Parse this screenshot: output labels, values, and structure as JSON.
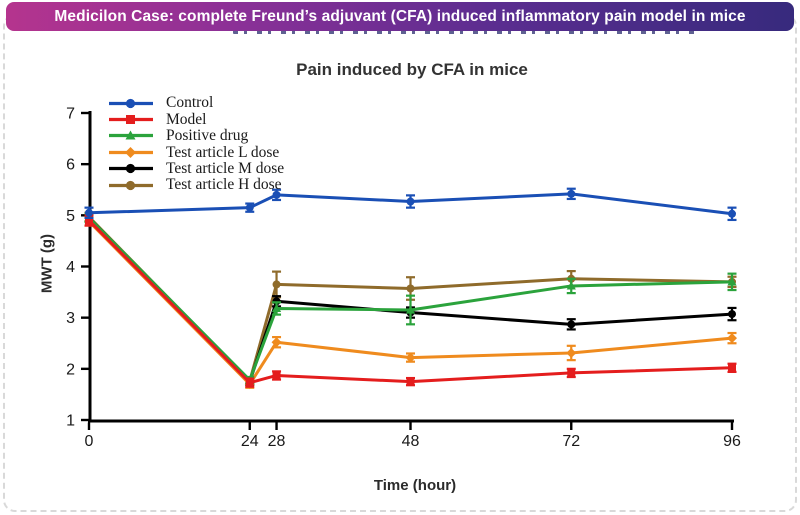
{
  "banner": {
    "text": "Medicilon Case: complete Freund’s adjuvant (CFA) induced inflammatory pain model in mice",
    "bg_left": "#b5348e",
    "bg_right": "#372a7d",
    "text_color": "#ffffff"
  },
  "chart_data": {
    "type": "line",
    "title": "Pain induced by CFA in mice",
    "xlabel": "Time (hour)",
    "ylabel": "MWT (g)",
    "x": [
      0,
      24,
      28,
      48,
      72,
      96
    ],
    "x_tick_labels": [
      "0",
      "24",
      "28",
      "48",
      "72",
      "96"
    ],
    "xlim": [
      0,
      96
    ],
    "ylim": [
      1,
      7
    ],
    "y_ticks": [
      1,
      2,
      3,
      4,
      5,
      6,
      7
    ],
    "grid": false,
    "error_bars": true,
    "legend_position": "top-left",
    "axis_color": "#000000",
    "series": [
      {
        "name": "Control",
        "color": "#1a4fb5",
        "marker": "circle",
        "values": [
          5.05,
          5.15,
          5.4,
          5.27,
          5.42,
          5.03
        ],
        "errors": [
          0.1,
          0.08,
          0.1,
          0.12,
          0.1,
          0.12
        ]
      },
      {
        "name": "Model",
        "color": "#e41d1d",
        "marker": "square",
        "values": [
          4.9,
          1.73,
          1.87,
          1.75,
          1.92,
          2.02
        ],
        "errors": [
          0.1,
          0.08,
          0.08,
          0.07,
          0.08,
          0.08
        ]
      },
      {
        "name": "Positive drug",
        "color": "#2ba33c",
        "marker": "triangle",
        "values": [
          4.95,
          1.78,
          3.18,
          3.15,
          3.62,
          3.7
        ],
        "errors": [
          0.08,
          0.06,
          0.12,
          0.28,
          0.14,
          0.16
        ]
      },
      {
        "name": "Test article L dose",
        "color": "#ef8b1e",
        "marker": "diamond",
        "values": [
          4.88,
          1.7,
          2.52,
          2.22,
          2.31,
          2.6
        ],
        "errors": [
          0.08,
          0.07,
          0.1,
          0.08,
          0.14,
          0.1
        ]
      },
      {
        "name": "Test article M dose",
        "color": "#000000",
        "marker": "circle",
        "values": [
          4.95,
          1.75,
          3.32,
          3.1,
          2.87,
          3.07
        ],
        "errors": [
          0.08,
          0.06,
          0.1,
          0.1,
          0.1,
          0.12
        ]
      },
      {
        "name": "Test article H dose",
        "color": "#8f6b2b",
        "marker": "circle",
        "values": [
          4.97,
          1.76,
          3.65,
          3.57,
          3.76,
          3.7
        ],
        "errors": [
          0.08,
          0.06,
          0.25,
          0.22,
          0.15,
          0.1
        ]
      }
    ]
  }
}
